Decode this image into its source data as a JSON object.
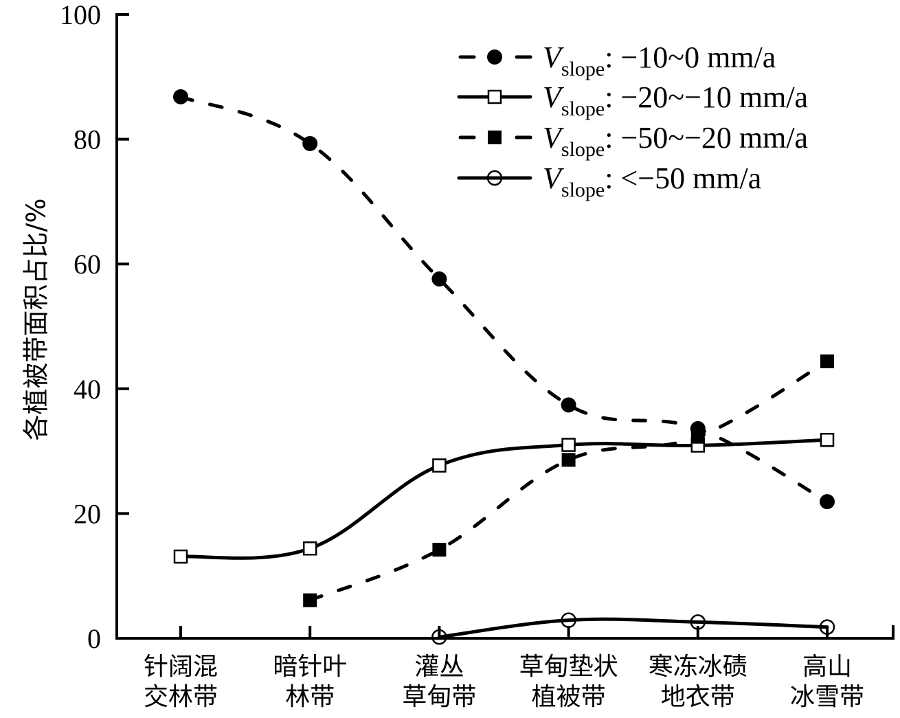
{
  "chart_data": {
    "type": "line",
    "title": "",
    "xlabel": "",
    "ylabel": "各植被带面积占比/%",
    "ylim": [
      0,
      100
    ],
    "yticks": [
      0,
      20,
      40,
      60,
      80,
      100
    ],
    "grid": false,
    "legend_position": "top-right",
    "categories": [
      [
        "针阔混",
        "交林带"
      ],
      [
        "暗针叶",
        "林带"
      ],
      [
        "灌丛",
        "草甸带"
      ],
      [
        "草甸垫状",
        "植被带"
      ],
      [
        "寒冻冰碛",
        "地衣带"
      ],
      [
        "高山",
        "冰雪带"
      ]
    ],
    "series": [
      {
        "name": "Vslope: −10~0 mm/a",
        "legend_var": "V",
        "legend_sub": "slope",
        "legend_range": ": −10~0 mm/a",
        "line": "dashed",
        "marker": "filled-circle",
        "color": "#000000",
        "values": [
          86.8,
          79.3,
          57.6,
          37.4,
          33.6,
          21.9
        ]
      },
      {
        "name": "Vslope: −20~−10 mm/a",
        "legend_var": "V",
        "legend_sub": "slope",
        "legend_range": ": −20~−10 mm/a",
        "line": "solid",
        "marker": "open-square",
        "color": "#000000",
        "values": [
          13.1,
          14.4,
          27.7,
          31.0,
          30.9,
          31.8
        ]
      },
      {
        "name": "Vslope: −50~−20 mm/a",
        "legend_var": "V",
        "legend_sub": "slope",
        "legend_range": ": −50~−20 mm/a",
        "line": "dashed",
        "marker": "filled-square",
        "color": "#000000",
        "values": [
          null,
          6.1,
          14.2,
          28.6,
          32.3,
          44.4
        ]
      },
      {
        "name": "Vslope: <−50 mm/a",
        "legend_var": "V",
        "legend_sub": "slope",
        "legend_range": ": <−50 mm/a",
        "line": "solid",
        "marker": "open-circle",
        "color": "#000000",
        "values": [
          null,
          null,
          0.2,
          2.9,
          2.6,
          1.8
        ]
      }
    ]
  }
}
